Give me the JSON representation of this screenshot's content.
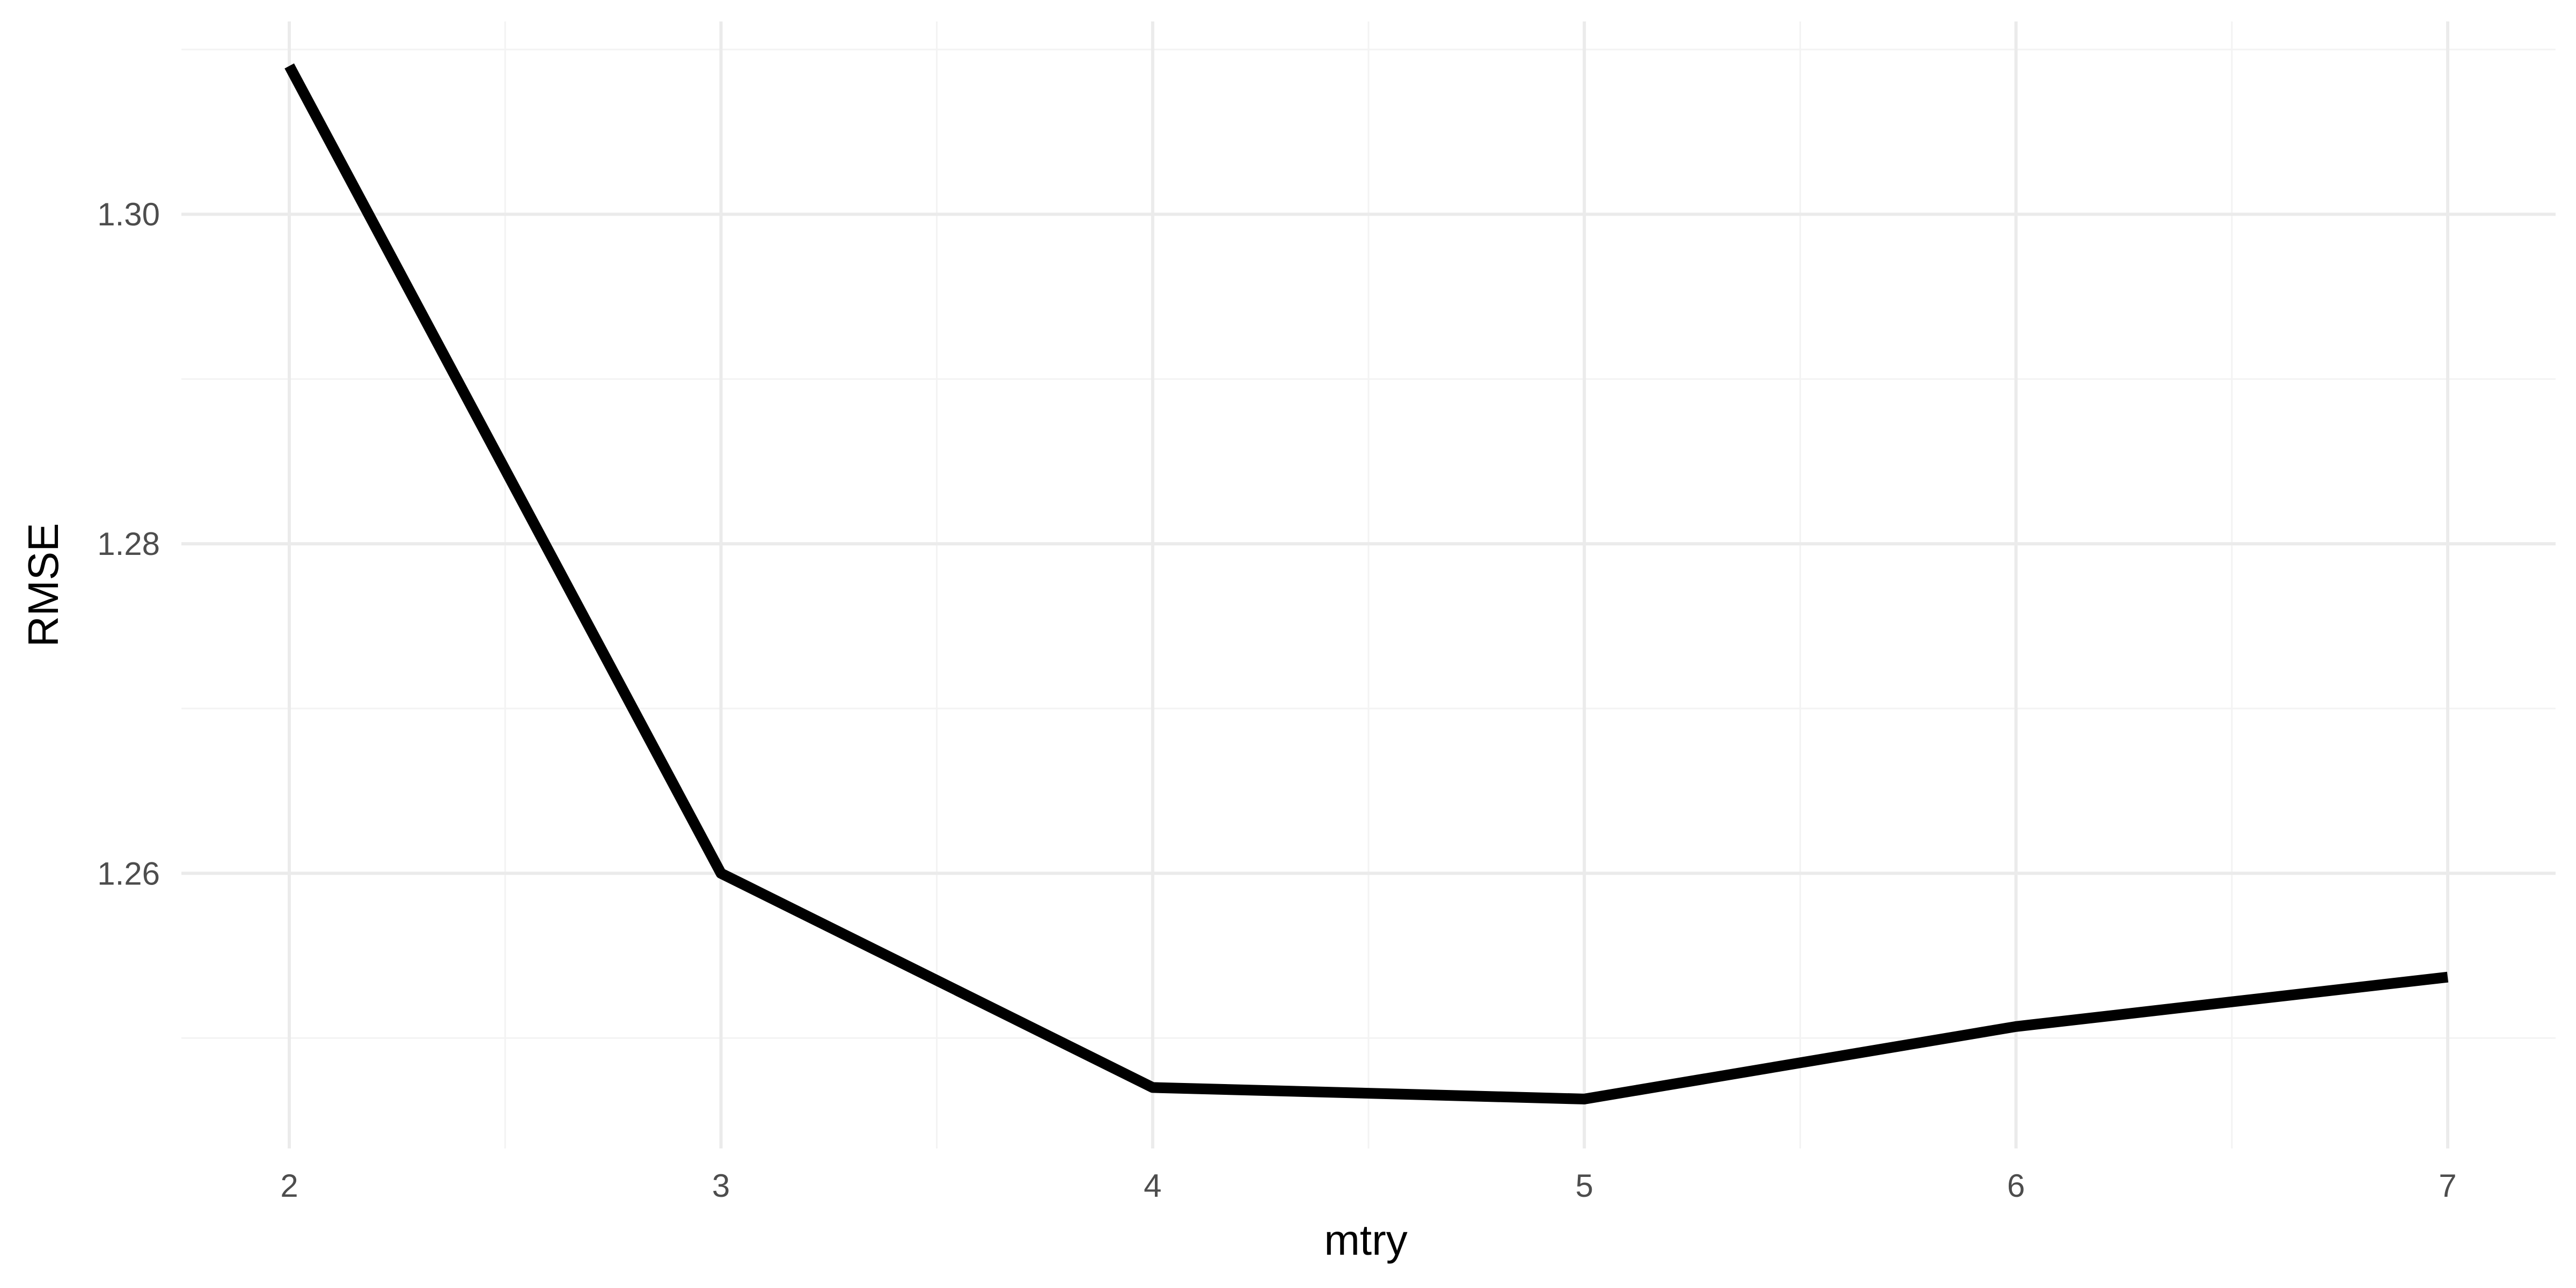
{
  "chart_data": {
    "type": "line",
    "title": "",
    "xlabel": "mtry",
    "ylabel": "RMSE",
    "x": [
      2,
      3,
      4,
      5,
      6,
      7
    ],
    "series": [
      {
        "values": [
          1.309,
          1.26,
          1.247,
          1.2463,
          1.2507,
          1.2537
        ]
      }
    ],
    "xlim": [
      1.75,
      7.25
    ],
    "ylim": [
      1.2433,
      1.3117
    ],
    "x_ticks": [
      2,
      3,
      4,
      5,
      6,
      7
    ],
    "y_ticks": [
      1.26,
      1.28,
      1.3
    ],
    "x_tick_labels": [
      "2",
      "3",
      "4",
      "5",
      "6",
      "7"
    ],
    "y_tick_labels": [
      "1.26",
      "1.28",
      "1.30"
    ],
    "grid": true,
    "legend": "none",
    "colors": {
      "line": "#000000",
      "grid_major": "#ebebeb",
      "grid_minor": "#f3f3f3",
      "tick_text": "#4d4d4d"
    }
  }
}
